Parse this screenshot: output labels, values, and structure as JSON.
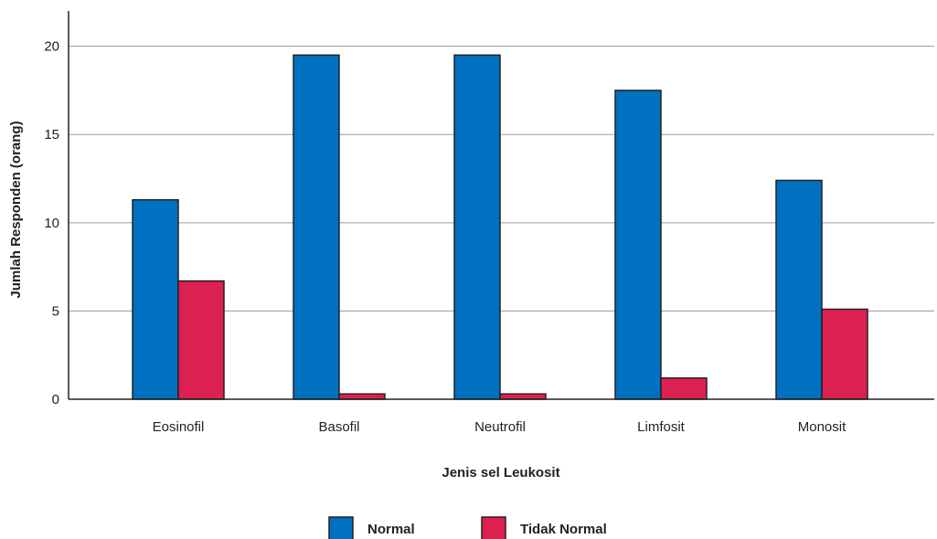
{
  "chart_data": {
    "type": "bar",
    "categories": [
      "Eosinofil",
      "Basofil",
      "Neutrofil",
      "Limfosit",
      "Monosit"
    ],
    "series": [
      {
        "name": "Normal",
        "values": [
          11.3,
          19.5,
          19.5,
          17.5,
          12.4
        ],
        "color": "#0070C0"
      },
      {
        "name": "Tidak Normal",
        "values": [
          6.7,
          0.3,
          0.3,
          1.2,
          5.1
        ],
        "color": "#DC2050"
      }
    ],
    "xlabel": "Jenis sel Leukosit",
    "ylabel": "Jumlah Responden (orang)",
    "ylim": [
      0,
      22
    ],
    "yticks": [
      0,
      5,
      10,
      15,
      20
    ],
    "grid": true,
    "legend_position": "bottom-center"
  }
}
